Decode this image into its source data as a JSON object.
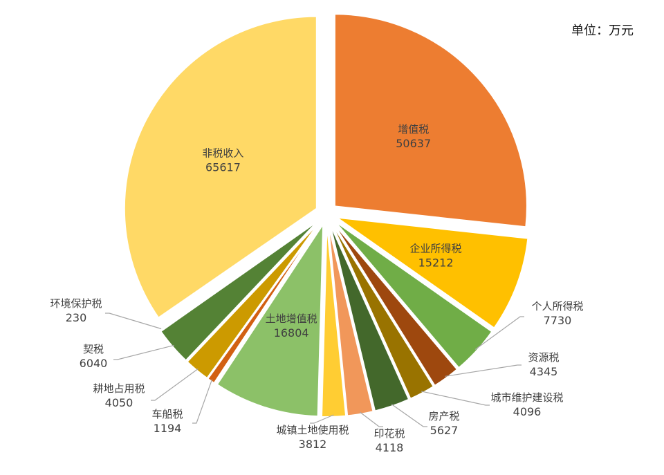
{
  "unit_label": "单位：万元",
  "chart_data": {
    "type": "pie",
    "title": "",
    "unit": "单位：万元",
    "slices": [
      {
        "name": "增值税",
        "value": 50637,
        "color": "#ED7D31",
        "label_inside": true,
        "explode": 1.0
      },
      {
        "name": "企业所得税",
        "value": 15212,
        "color": "#FFC000",
        "label_inside": true,
        "explode": 1.0
      },
      {
        "name": "个人所得税",
        "value": 7730,
        "color": "#70AD47",
        "label_inside": false,
        "explode": 1.0
      },
      {
        "name": "资源税",
        "value": 4345,
        "color": "#9E480E",
        "label_inside": false,
        "explode": 1.0
      },
      {
        "name": "城市维护建设税",
        "value": 4096,
        "color": "#997300",
        "label_inside": false,
        "explode": 1.0
      },
      {
        "name": "房产税",
        "value": 5627,
        "color": "#43682B",
        "label_inside": false,
        "explode": 1.0
      },
      {
        "name": "印花税",
        "value": 4118,
        "color": "#F1975A",
        "label_inside": false,
        "explode": 1.0
      },
      {
        "name": "城镇土地使用税",
        "value": 3812,
        "color": "#FFCD33",
        "label_inside": false,
        "explode": 1.0
      },
      {
        "name": "土地增值税",
        "value": 16804,
        "color": "#8CC168",
        "label_inside": true,
        "explode": 1.0
      },
      {
        "name": "车船税",
        "value": 1194,
        "color": "#D26012",
        "label_inside": false,
        "explode": 1.0
      },
      {
        "name": "耕地占用税",
        "value": 4050,
        "color": "#CC9A00",
        "label_inside": false,
        "explode": 1.0
      },
      {
        "name": "契税",
        "value": 6040,
        "color": "#548235",
        "label_inside": false,
        "explode": 1.0
      },
      {
        "name": "环境保护税",
        "value": 230,
        "color": "#BDD7EE",
        "label_inside": false,
        "explode": 1.0
      },
      {
        "name": "非税收入",
        "value": 65617,
        "color": "#FFD966",
        "label_inside": true,
        "explode": 1.0
      }
    ],
    "legend": "none"
  }
}
